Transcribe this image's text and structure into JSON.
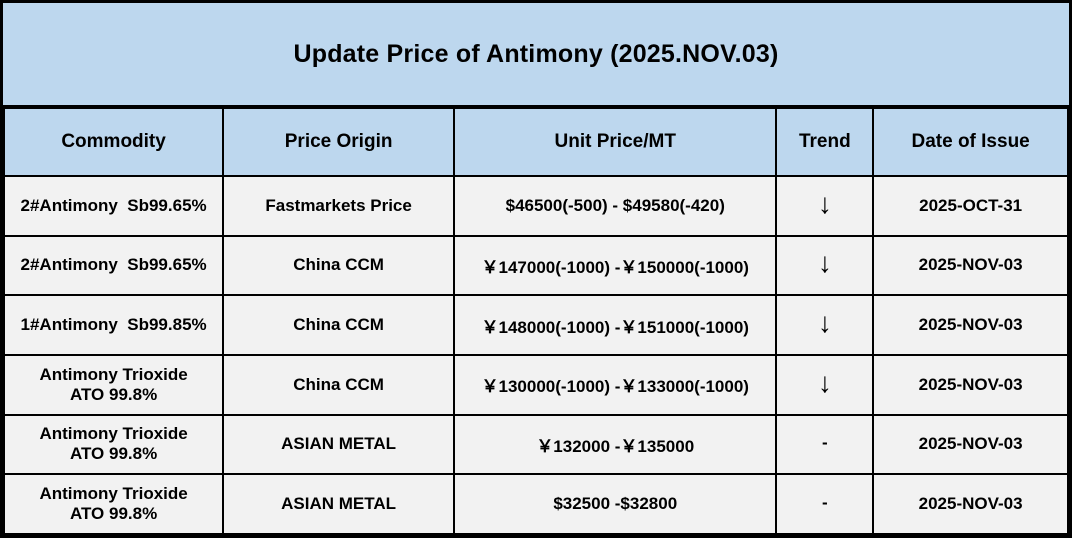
{
  "title": "Update Price of Antimony (2025.NOV.03)",
  "colors": {
    "header_bg": "#BDD7EE",
    "row_bg": "#F2F2F2",
    "border": "#000000",
    "text": "#000000"
  },
  "icons": {
    "down_arrow": "down-arrow-glyph"
  },
  "table": {
    "headers": {
      "commodity": "Commodity",
      "origin": "Price Origin",
      "price": "Unit Price/MT",
      "trend": "Trend",
      "date": "Date of Issue"
    },
    "rows": [
      {
        "commodity": "2#Antimony  Sb99.65%",
        "origin": "Fastmarkets Price",
        "price": "$46500(-500) - $49580(-420)",
        "trend": "↓",
        "date": "2025-OCT-31"
      },
      {
        "commodity": "2#Antimony  Sb99.65%",
        "origin": "China CCM",
        "price": "￥147000(-1000) -￥150000(-1000)",
        "trend": "↓",
        "date": "2025-NOV-03"
      },
      {
        "commodity": "1#Antimony  Sb99.85%",
        "origin": "China CCM",
        "price": "￥148000(-1000) -￥151000(-1000)",
        "trend": "↓",
        "date": "2025-NOV-03"
      },
      {
        "commodity": "Antimony Trioxide\nATO 99.8%",
        "origin": "China CCM",
        "price": "￥130000(-1000) -￥133000(-1000)",
        "trend": "↓",
        "date": "2025-NOV-03"
      },
      {
        "commodity": "Antimony Trioxide\nATO 99.8%",
        "origin": "ASIAN METAL",
        "price": "￥132000 -￥135000",
        "trend": "-",
        "date": "2025-NOV-03"
      },
      {
        "commodity": "Antimony Trioxide\nATO 99.8%",
        "origin": "ASIAN METAL",
        "price": "$32500 -$32800",
        "trend": "-",
        "date": "2025-NOV-03"
      }
    ]
  }
}
